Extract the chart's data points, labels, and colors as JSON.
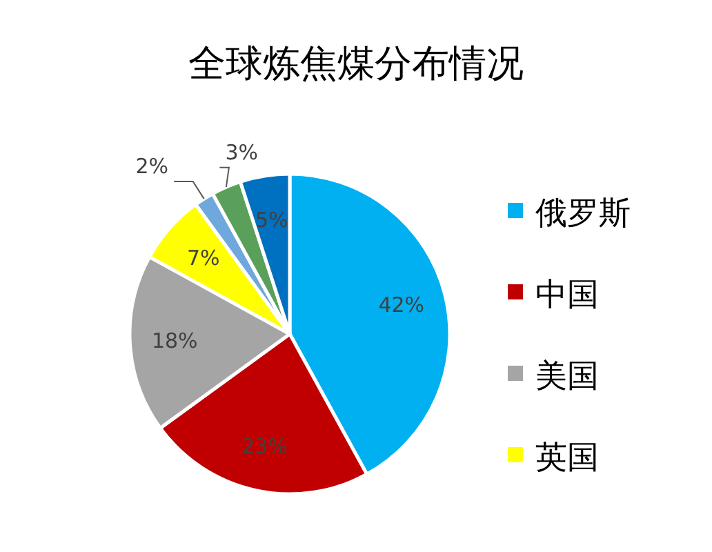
{
  "chart_data": {
    "type": "pie",
    "title": "全球炼焦煤分布情况",
    "categories": [
      "俄罗斯",
      "中国",
      "美国",
      "英国",
      null,
      null,
      null
    ],
    "values": [
      42,
      23,
      18,
      7,
      2,
      3,
      5
    ],
    "colors": [
      "#00b0f0",
      "#c00000",
      "#a5a5a5",
      "#ffff00",
      "#6fa8dc",
      "#5aa05a",
      "#0070c0"
    ],
    "value_labels": [
      "42%",
      "23%",
      "18%",
      "7%",
      "2%",
      "3%",
      "5%"
    ],
    "legend": "right"
  }
}
